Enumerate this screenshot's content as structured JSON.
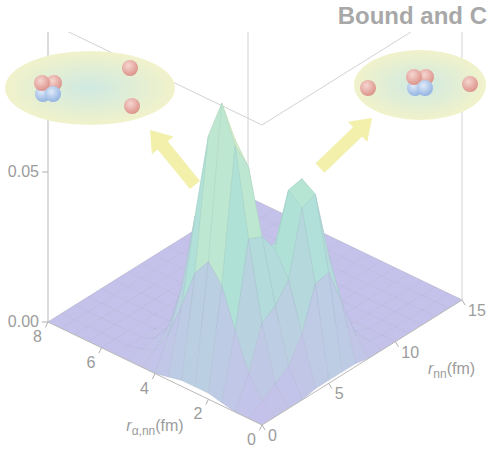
{
  "chart_data": {
    "type": "surface",
    "title": "Bound and C",
    "x_label": "rα,nn(fm)",
    "y_label": "rnn(fm)",
    "x": [
      0,
      0.5,
      1,
      1.5,
      2,
      2.5,
      3,
      3.5,
      4,
      4.5,
      5,
      5.5,
      6,
      6.5,
      7,
      7.5,
      8
    ],
    "y": [
      0,
      1,
      2,
      3,
      4,
      5,
      6,
      7,
      8,
      9,
      10,
      11,
      12,
      13,
      14,
      15
    ],
    "z": [
      [
        0,
        0,
        0,
        0.001,
        0.002,
        0.002,
        0.002,
        0.001,
        0,
        0,
        0,
        0,
        0,
        0,
        0,
        0,
        0
      ],
      [
        0,
        0.003,
        0.01,
        0.022,
        0.035,
        0.041,
        0.035,
        0.022,
        0.01,
        0.003,
        0.001,
        0,
        0,
        0,
        0,
        0,
        0
      ],
      [
        0,
        0.006,
        0.024,
        0.05,
        0.079,
        0.091,
        0.078,
        0.049,
        0.023,
        0.008,
        0.002,
        0,
        0,
        0,
        0,
        0,
        0
      ],
      [
        0,
        0.009,
        0.027,
        0.048,
        0.069,
        0.076,
        0.064,
        0.04,
        0.019,
        0.006,
        0.002,
        0,
        0,
        0,
        0,
        0,
        0
      ],
      [
        0.001,
        0.017,
        0.033,
        0.041,
        0.038,
        0.03,
        0.021,
        0.012,
        0.006,
        0.002,
        0.001,
        0,
        0,
        0,
        0,
        0,
        0
      ],
      [
        0.001,
        0.031,
        0.054,
        0.058,
        0.038,
        0.016,
        0.005,
        0.002,
        0.001,
        0,
        0,
        0,
        0,
        0,
        0,
        0,
        0
      ],
      [
        0.001,
        0.032,
        0.056,
        0.059,
        0.038,
        0.014,
        0.003,
        0.001,
        0,
        0,
        0,
        0,
        0,
        0,
        0,
        0,
        0
      ],
      [
        0.001,
        0.019,
        0.033,
        0.035,
        0.022,
        0.008,
        0.002,
        0,
        0,
        0,
        0,
        0,
        0,
        0,
        0,
        0,
        0
      ],
      [
        0,
        0.006,
        0.011,
        0.011,
        0.007,
        0.003,
        0.001,
        0,
        0,
        0,
        0,
        0,
        0,
        0,
        0,
        0,
        0
      ],
      [
        0,
        0.001,
        0.002,
        0.002,
        0.001,
        0,
        0,
        0,
        0,
        0,
        0,
        0,
        0,
        0,
        0,
        0,
        0
      ],
      [
        0,
        0,
        0,
        0,
        0,
        0,
        0,
        0,
        0,
        0,
        0,
        0,
        0,
        0,
        0,
        0,
        0
      ],
      [
        0,
        0,
        0,
        0,
        0,
        0,
        0,
        0,
        0,
        0,
        0,
        0,
        0,
        0,
        0,
        0,
        0
      ],
      [
        0,
        0,
        0,
        0,
        0,
        0,
        0,
        0,
        0,
        0,
        0,
        0,
        0,
        0,
        0,
        0,
        0
      ],
      [
        0,
        0,
        0,
        0,
        0,
        0,
        0,
        0,
        0,
        0,
        0,
        0,
        0,
        0,
        0,
        0,
        0
      ],
      [
        0,
        0,
        0,
        0,
        0,
        0,
        0,
        0,
        0,
        0,
        0,
        0,
        0,
        0,
        0,
        0,
        0
      ],
      [
        0,
        0,
        0,
        0,
        0,
        0,
        0,
        0,
        0,
        0,
        0,
        0,
        0,
        0,
        0,
        0,
        0
      ]
    ],
    "xlim": [
      0,
      8
    ],
    "ylim": [
      0,
      15
    ],
    "zlim": [
      0,
      0.1
    ],
    "xticks": [
      0,
      2,
      4,
      6,
      8
    ],
    "yticks": [
      0,
      5,
      10,
      15
    ],
    "zticks": [
      {
        "value": 0,
        "label": "0.00"
      },
      0.05
    ]
  }
}
